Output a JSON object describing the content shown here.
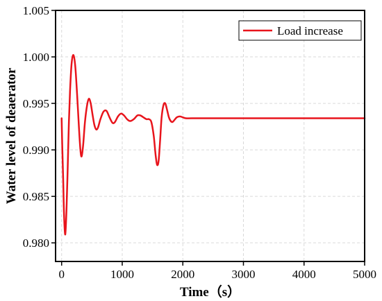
{
  "chart_data": {
    "type": "line",
    "title": "",
    "xlabel": "Time（s）",
    "ylabel": "Water level of deaerator",
    "xlim": [
      -100,
      5000
    ],
    "ylim": [
      0.978,
      1.005
    ],
    "xticks": [
      0,
      1000,
      2000,
      3000,
      4000,
      5000
    ],
    "yticks": [
      0.98,
      0.985,
      0.99,
      0.995,
      1.0,
      1.005
    ],
    "ytick_labels": [
      "0.980",
      "0.985",
      "0.990",
      "0.995",
      "1.000",
      "1.005"
    ],
    "grid": true,
    "legend_position": "top-right",
    "colors": {
      "series": "#e8141c",
      "axis": "#000000",
      "grid": "#d9d9d9"
    },
    "series": [
      {
        "name": "Load increase",
        "points": [
          [
            0,
            0.9934
          ],
          [
            10,
            0.9905
          ],
          [
            25,
            0.987
          ],
          [
            40,
            0.983
          ],
          [
            60,
            0.9809
          ],
          [
            80,
            0.9835
          ],
          [
            100,
            0.988
          ],
          [
            120,
            0.993
          ],
          [
            140,
            0.9965
          ],
          [
            165,
            0.9993
          ],
          [
            195,
            1.0002
          ],
          [
            225,
            0.999
          ],
          [
            255,
            0.996
          ],
          [
            285,
            0.9925
          ],
          [
            310,
            0.99
          ],
          [
            330,
            0.9893
          ],
          [
            355,
            0.9905
          ],
          [
            385,
            0.993
          ],
          [
            420,
            0.9948
          ],
          [
            450,
            0.9955
          ],
          [
            480,
            0.995
          ],
          [
            510,
            0.9938
          ],
          [
            540,
            0.9927
          ],
          [
            570,
            0.9922
          ],
          [
            600,
            0.9924
          ],
          [
            640,
            0.9933
          ],
          [
            690,
            0.9941
          ],
          [
            740,
            0.9942
          ],
          [
            790,
            0.9935
          ],
          [
            840,
            0.9929
          ],
          [
            880,
            0.993
          ],
          [
            930,
            0.9936
          ],
          [
            980,
            0.9939
          ],
          [
            1030,
            0.9937
          ],
          [
            1080,
            0.9933
          ],
          [
            1130,
            0.9931
          ],
          [
            1190,
            0.9933
          ],
          [
            1250,
            0.9937
          ],
          [
            1300,
            0.9937
          ],
          [
            1350,
            0.9935
          ],
          [
            1400,
            0.9933
          ],
          [
            1440,
            0.9933
          ],
          [
            1480,
            0.993
          ],
          [
            1520,
            0.9915
          ],
          [
            1550,
            0.9895
          ],
          [
            1575,
            0.9884
          ],
          [
            1600,
            0.9888
          ],
          [
            1625,
            0.991
          ],
          [
            1650,
            0.9935
          ],
          [
            1680,
            0.9948
          ],
          [
            1710,
            0.995
          ],
          [
            1740,
            0.9943
          ],
          [
            1770,
            0.9935
          ],
          [
            1800,
            0.9931
          ],
          [
            1830,
            0.993
          ],
          [
            1860,
            0.9932
          ],
          [
            1900,
            0.9935
          ],
          [
            1950,
            0.9936
          ],
          [
            2000,
            0.9935
          ],
          [
            2050,
            0.9934
          ],
          [
            2150,
            0.9934
          ],
          [
            2500,
            0.9934
          ],
          [
            3000,
            0.9934
          ],
          [
            3500,
            0.9934
          ],
          [
            4000,
            0.9934
          ],
          [
            4500,
            0.9934
          ],
          [
            5000,
            0.9934
          ]
        ]
      }
    ]
  }
}
